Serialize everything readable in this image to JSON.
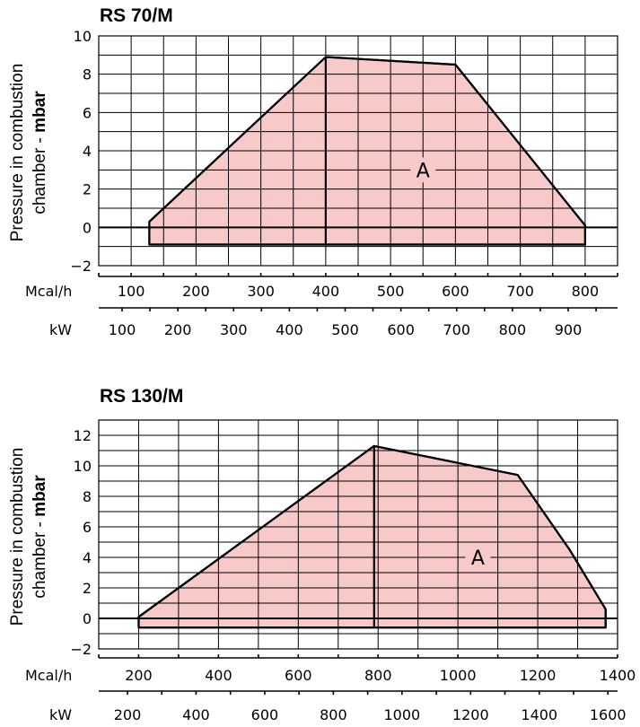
{
  "chart_data": [
    {
      "type": "area",
      "title": "RS 70/M",
      "ylabel_line1": "Pressure in combustion",
      "ylabel_line2_prefix": "chamber - ",
      "ylabel_line2_bold": "mbar",
      "ylim": [
        -2,
        10
      ],
      "y_ticks": [
        -2,
        0,
        2,
        4,
        6,
        8,
        10
      ],
      "x_unit_label": "Mcal/h",
      "x_ticks": [
        100,
        200,
        300,
        400,
        500,
        600,
        700,
        800
      ],
      "xlim": [
        50,
        850
      ],
      "x2_unit_label": "kW",
      "x2_ticks": [
        100,
        200,
        300,
        400,
        500,
        600,
        700,
        800,
        900
      ],
      "x2_per_x": 1.163,
      "grid": true,
      "region_label": "A",
      "region_polygon": [
        [
          128,
          0.3
        ],
        [
          400,
          8.9
        ],
        [
          600,
          8.5
        ],
        [
          800,
          0.1
        ],
        [
          800,
          -0.9
        ],
        [
          128,
          -0.9
        ]
      ],
      "divider_x": 400,
      "annotation_point": [
        550,
        3
      ]
    },
    {
      "type": "area",
      "title": "RS 130/M",
      "ylabel_line1": "Pressure in combustion",
      "ylabel_line2_prefix": "chamber - ",
      "ylabel_line2_bold": "mbar",
      "ylim": [
        -2,
        13
      ],
      "y_ticks": [
        -2,
        0,
        2,
        4,
        6,
        8,
        10,
        12
      ],
      "x_unit_label": "Mcal/h",
      "x_ticks": [
        200,
        400,
        600,
        800,
        1000,
        1200,
        1400
      ],
      "xlim": [
        100,
        1400
      ],
      "x2_unit_label": "kW",
      "x2_ticks": [
        200,
        400,
        600,
        800,
        1000,
        1200,
        1400,
        1600
      ],
      "x2_per_x": 1.163,
      "grid": true,
      "region_label": "A",
      "region_polygon": [
        [
          200,
          0.1
        ],
        [
          790,
          11.3
        ],
        [
          1150,
          9.4
        ],
        [
          1280,
          4.5
        ],
        [
          1370,
          0.6
        ],
        [
          1370,
          -0.6
        ],
        [
          200,
          -0.6
        ]
      ],
      "divider_x": 790,
      "annotation_point": [
        1050,
        4
      ]
    }
  ]
}
